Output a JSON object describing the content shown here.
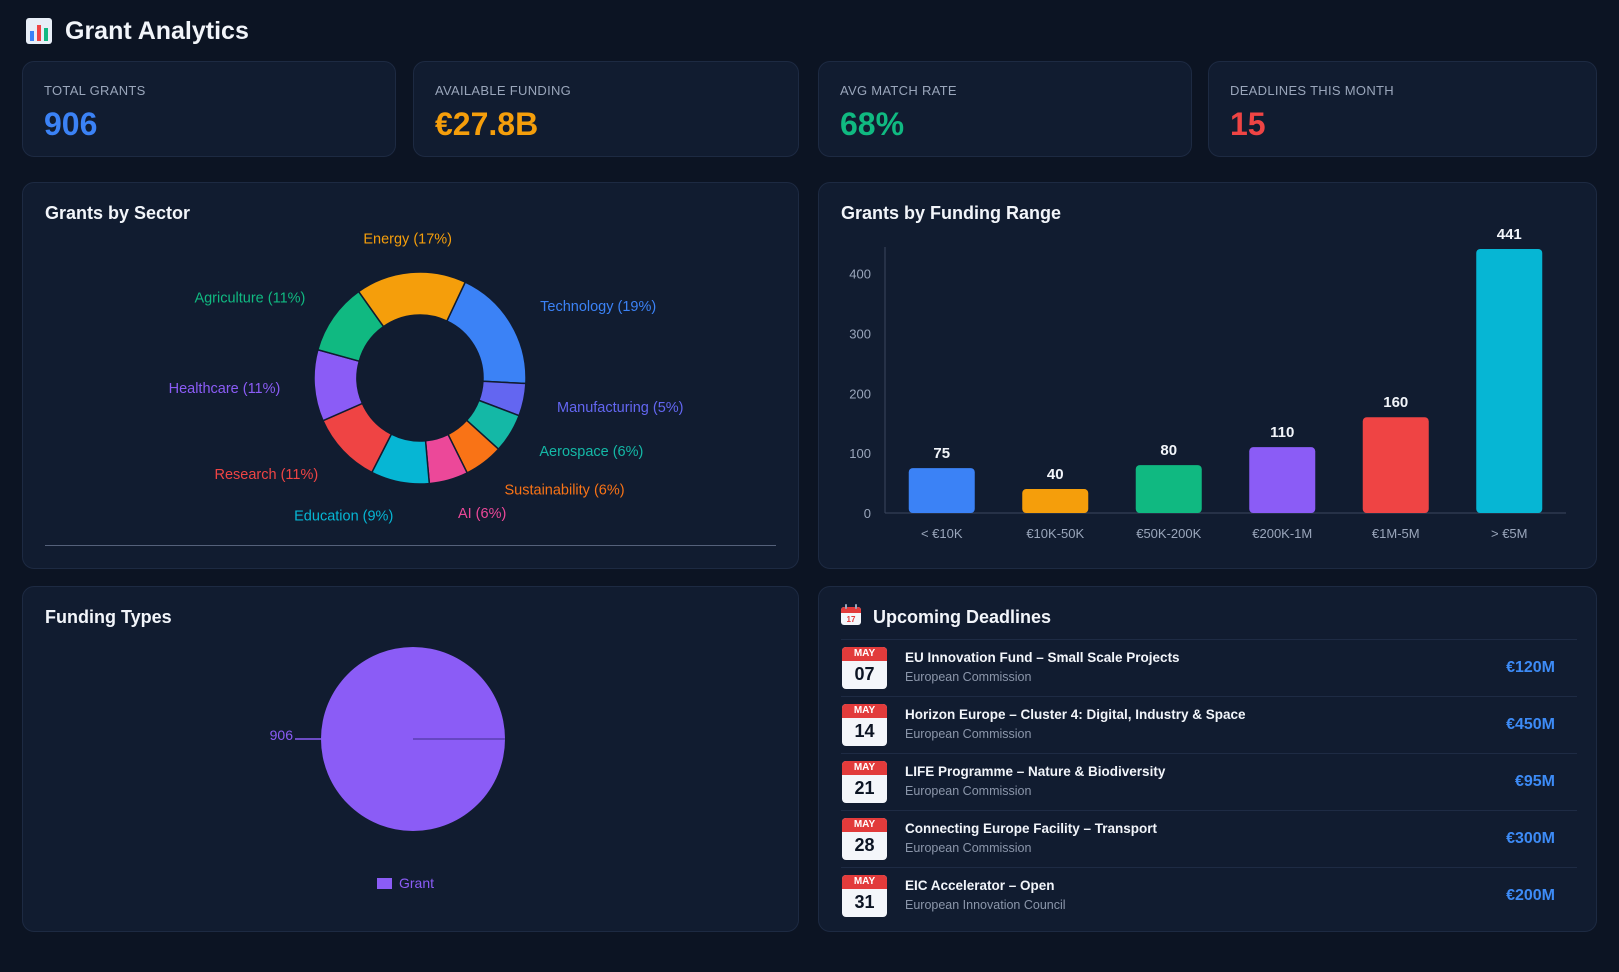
{
  "header": {
    "title": "Grant Analytics",
    "icon": "bar-chart-icon"
  },
  "stats": [
    {
      "label": "TOTAL GRANTS",
      "value": "906",
      "color": "#3b82f6"
    },
    {
      "label": "AVAILABLE FUNDING",
      "value": "€27.8B",
      "color": "#f59e0b"
    },
    {
      "label": "AVG MATCH RATE",
      "value": "68%",
      "color": "#10b981"
    },
    {
      "label": "DEADLINES THIS MONTH",
      "value": "15",
      "color": "#ef4444"
    }
  ],
  "panels": {
    "sector": {
      "title": "Grants by Sector"
    },
    "range": {
      "title": "Grants by Funding Range"
    },
    "types": {
      "title": "Funding Types"
    },
    "deadlines": {
      "title": "Upcoming Deadlines",
      "icon": "calendar-icon"
    }
  },
  "chart_data": [
    {
      "type": "pie",
      "title": "Grants by Sector",
      "categories": [
        "Technology",
        "Manufacturing",
        "Aerospace",
        "Sustainability",
        "AI",
        "Education",
        "Research",
        "Healthcare",
        "Agriculture",
        "Energy"
      ],
      "values": [
        19,
        5,
        6,
        6,
        6,
        9,
        11,
        11,
        11,
        17
      ],
      "labels": [
        "Technology (19%)",
        "Manufacturing (5%)",
        "Aerospace (6%)",
        "Sustainability (6%)",
        "AI (6%)",
        "Education (9%)",
        "Research (11%)",
        "Healthcare (11%)",
        "Agriculture (11%)",
        "Energy (17%)"
      ],
      "colors": [
        "#3b82f6",
        "#6366f1",
        "#14b8a6",
        "#f97316",
        "#ec4899",
        "#06b6d4",
        "#ef4444",
        "#8b5cf6",
        "#10b981",
        "#f59e0b"
      ],
      "donut": true
    },
    {
      "type": "bar",
      "title": "Grants by Funding Range",
      "categories": [
        "< €10K",
        "€10K-50K",
        "€50K-200K",
        "€200K-1M",
        "€1M-5M",
        "> €5M"
      ],
      "values": [
        75,
        40,
        80,
        110,
        160,
        441
      ],
      "colors": [
        "#3b82f6",
        "#f59e0b",
        "#10b981",
        "#8b5cf6",
        "#ef4444",
        "#06b6d4"
      ],
      "yticks": [
        0,
        100,
        200,
        300,
        400
      ],
      "ylim": [
        0,
        441
      ],
      "grid": false
    },
    {
      "type": "pie",
      "title": "Funding Types",
      "categories": [
        "Grant"
      ],
      "values": [
        906
      ],
      "labels": [
        "906"
      ],
      "colors": [
        "#8b5cf6"
      ],
      "legend": "bottom"
    }
  ],
  "deadlines": [
    {
      "month": "MAY",
      "day": "07",
      "title": "EU Innovation Fund – Small Scale Projects",
      "org": "European Commission",
      "amount": "€120M"
    },
    {
      "month": "MAY",
      "day": "14",
      "title": "Horizon Europe – Cluster 4: Digital, Industry & Space",
      "org": "European Commission",
      "amount": "€450M"
    },
    {
      "month": "MAY",
      "day": "21",
      "title": "LIFE Programme – Nature & Biodiversity",
      "org": "European Commission",
      "amount": "€95M"
    },
    {
      "month": "MAY",
      "day": "28",
      "title": "Connecting Europe Facility – Transport",
      "org": "European Commission",
      "amount": "€300M"
    },
    {
      "month": "MAY",
      "day": "31",
      "title": "EIC Accelerator – Open",
      "org": "European Innovation Council",
      "amount": "€200M"
    }
  ]
}
